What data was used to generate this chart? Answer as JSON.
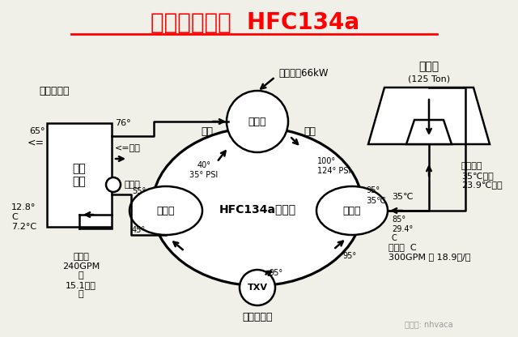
{
  "title": "基本空调循环  HFC134a",
  "title_color": "#FF0000",
  "bg_color": "#F0F0E8",
  "line_color": "#000000",
  "title_fontsize": 20,
  "labels": {
    "air_handler": "空气处理器",
    "fan_coil": "风机\n盘管",
    "three_way": "三通阀",
    "suction": "吸气",
    "discharge": "排气",
    "compressor": "压缩机",
    "evaporator": "蒸发器",
    "condenser": "冷凝器",
    "txv": "TXV",
    "txv_label": "热力膨胀阀",
    "refrigerant": "HFC134a制冷剂",
    "cooling_tower": "冷却塔",
    "cooling_ton": "(125 Ton)",
    "input_power": "输入功率66kW",
    "chilled_water": "冷冻水\n240GPM\n＝\n15.1升每\n秒",
    "cooling_water": "冷却水  C\n300GPM ＝ 18.9升/秒",
    "outdoor_air": "室外空气\n35℃干球\n23.9℃湿球",
    "air_label": "<=空气",
    "watermark": "微信号: nhvaca"
  }
}
